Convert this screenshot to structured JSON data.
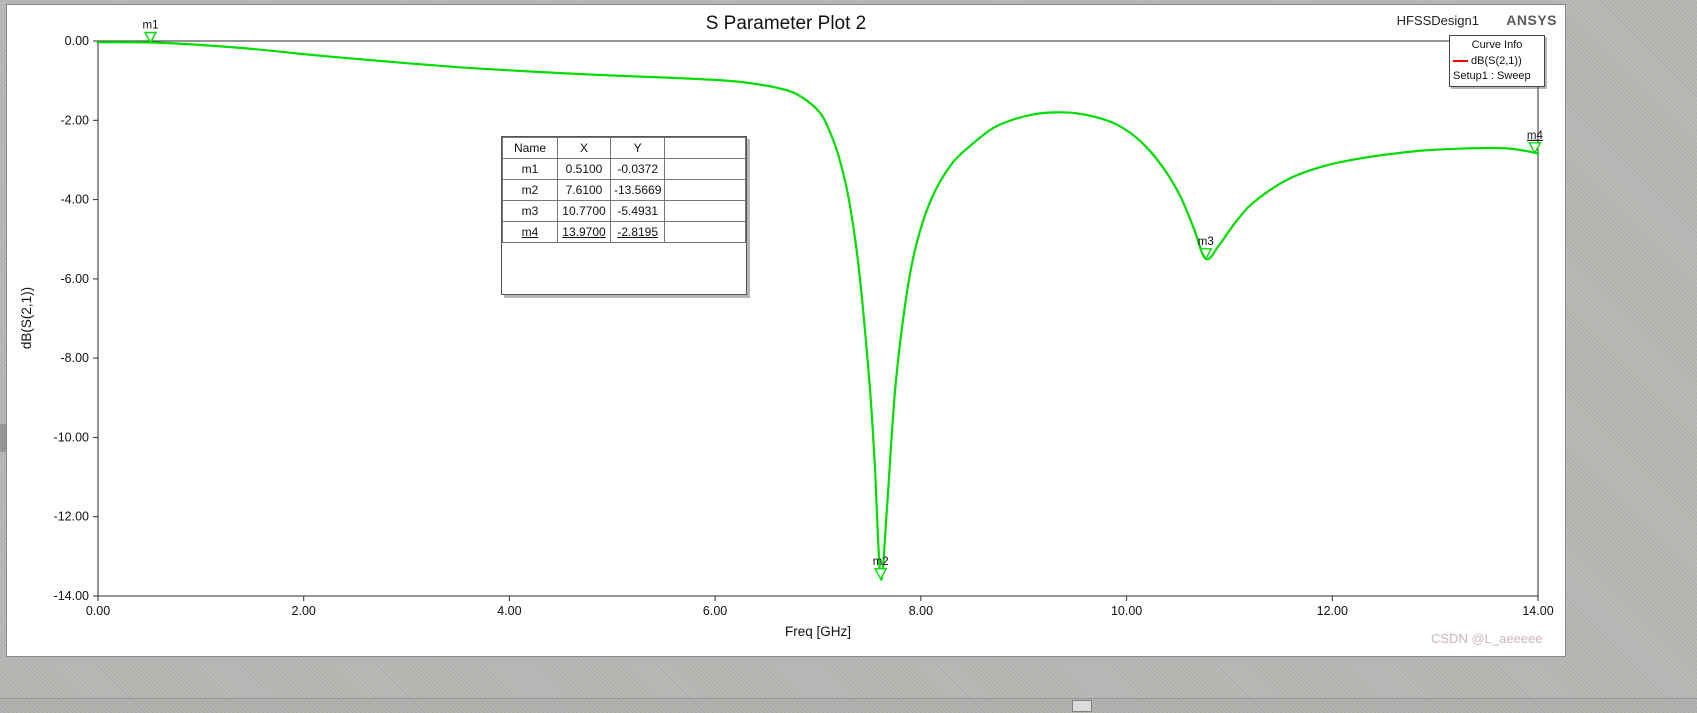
{
  "window": {
    "title": "S Parameter Plot 2",
    "design_label": "HFSSDesign1",
    "brand": "ANSYS",
    "watermark": "CSDN @L_aeeeee"
  },
  "legend": {
    "title": "Curve Info",
    "series_label": "dB(S(2,1))",
    "setup_label": "Setup1 : Sweep",
    "line_color": "#ff0000"
  },
  "marker_table": {
    "headers": [
      "Name",
      "X",
      "Y",
      ""
    ],
    "rows": [
      {
        "name": "m1",
        "x": "0.5100",
        "y": "-0.0372",
        "underline": false
      },
      {
        "name": "m2",
        "x": "7.6100",
        "y": "-13.5669",
        "underline": false
      },
      {
        "name": "m3",
        "x": "10.7700",
        "y": "-5.4931",
        "underline": false
      },
      {
        "name": "m4",
        "x": "13.9700",
        "y": "-2.8195",
        "underline": true
      }
    ]
  },
  "chart_data": {
    "type": "line",
    "title": "S Parameter Plot 2",
    "xlabel": "Freq [GHz]",
    "ylabel": "dB(S(2,1))",
    "xlim": [
      0,
      14
    ],
    "ylim": [
      -14,
      0
    ],
    "x_ticks": [
      "0.00",
      "2.00",
      "4.00",
      "6.00",
      "8.00",
      "10.00",
      "12.00",
      "14.00"
    ],
    "y_ticks": [
      "0.00",
      "-2.00",
      "-4.00",
      "-6.00",
      "-8.00",
      "-10.00",
      "-12.00",
      "-14.00"
    ],
    "grid": false,
    "legend_position": "top-right",
    "series": [
      {
        "name": "dB(S(2,1))",
        "color": "#00dd00",
        "points": [
          [
            0,
            -0.03
          ],
          [
            0.51,
            -0.0372
          ],
          [
            1,
            -0.1
          ],
          [
            1.5,
            -0.2
          ],
          [
            2,
            -0.33
          ],
          [
            2.5,
            -0.45
          ],
          [
            3,
            -0.56
          ],
          [
            3.5,
            -0.66
          ],
          [
            4,
            -0.74
          ],
          [
            4.5,
            -0.81
          ],
          [
            5,
            -0.87
          ],
          [
            5.5,
            -0.92
          ],
          [
            6,
            -0.98
          ],
          [
            6.3,
            -1.05
          ],
          [
            6.6,
            -1.18
          ],
          [
            6.8,
            -1.35
          ],
          [
            7,
            -1.75
          ],
          [
            7.1,
            -2.2
          ],
          [
            7.2,
            -2.9
          ],
          [
            7.3,
            -4
          ],
          [
            7.4,
            -5.8
          ],
          [
            7.5,
            -8.6
          ],
          [
            7.55,
            -10.6
          ],
          [
            7.61,
            -13.5669
          ],
          [
            7.67,
            -11.8
          ],
          [
            7.75,
            -8.8
          ],
          [
            7.85,
            -6.6
          ],
          [
            7.95,
            -5.2
          ],
          [
            8.1,
            -4
          ],
          [
            8.3,
            -3.1
          ],
          [
            8.5,
            -2.6
          ],
          [
            8.7,
            -2.2
          ],
          [
            8.9,
            -1.98
          ],
          [
            9.1,
            -1.85
          ],
          [
            9.3,
            -1.8
          ],
          [
            9.5,
            -1.82
          ],
          [
            9.7,
            -1.92
          ],
          [
            9.9,
            -2.1
          ],
          [
            10.1,
            -2.45
          ],
          [
            10.3,
            -3
          ],
          [
            10.5,
            -3.8
          ],
          [
            10.65,
            -4.7
          ],
          [
            10.77,
            -5.4931
          ],
          [
            10.9,
            -5.15
          ],
          [
            11.05,
            -4.6
          ],
          [
            11.2,
            -4.15
          ],
          [
            11.4,
            -3.75
          ],
          [
            11.6,
            -3.45
          ],
          [
            11.8,
            -3.25
          ],
          [
            12,
            -3.1
          ],
          [
            12.3,
            -2.95
          ],
          [
            12.6,
            -2.84
          ],
          [
            12.9,
            -2.76
          ],
          [
            13.2,
            -2.72
          ],
          [
            13.5,
            -2.7
          ],
          [
            13.7,
            -2.71
          ],
          [
            13.85,
            -2.76
          ],
          [
            13.97,
            -2.8195
          ],
          [
            14,
            -2.84
          ]
        ]
      }
    ],
    "markers": [
      {
        "name": "m1",
        "x": 0.51,
        "y": -0.0372,
        "underline": false
      },
      {
        "name": "m2",
        "x": 7.61,
        "y": -13.5669,
        "underline": false
      },
      {
        "name": "m3",
        "x": 10.77,
        "y": -5.4931,
        "underline": false
      },
      {
        "name": "m4",
        "x": 13.97,
        "y": -2.8195,
        "underline": true
      }
    ]
  }
}
